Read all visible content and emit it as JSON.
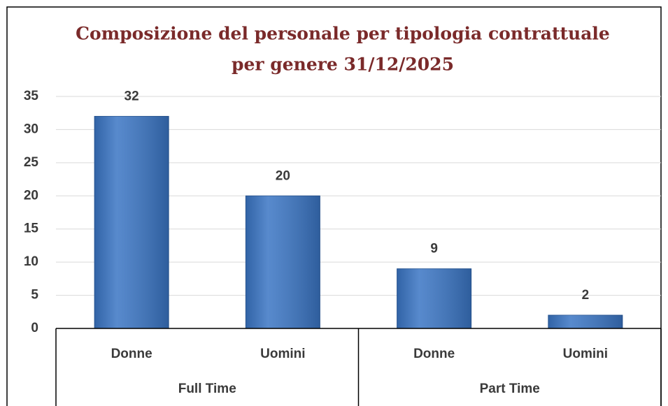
{
  "chart_data": {
    "type": "bar",
    "title": [
      "Composizione del personale per tipologia contrattuale",
      "per genere 31/12/2025"
    ],
    "categories": [
      "Donne",
      "Uomini",
      "Donne",
      "Uomini"
    ],
    "groups": [
      {
        "name": "Full Time",
        "size": 2
      },
      {
        "name": "Part Time",
        "size": 2
      }
    ],
    "values": [
      32,
      20,
      9,
      2
    ],
    "color": "#3a75c4",
    "ylim": [
      0,
      35
    ],
    "yticks": [
      0,
      5,
      10,
      15,
      20,
      25,
      30,
      35
    ],
    "grid": true
  }
}
